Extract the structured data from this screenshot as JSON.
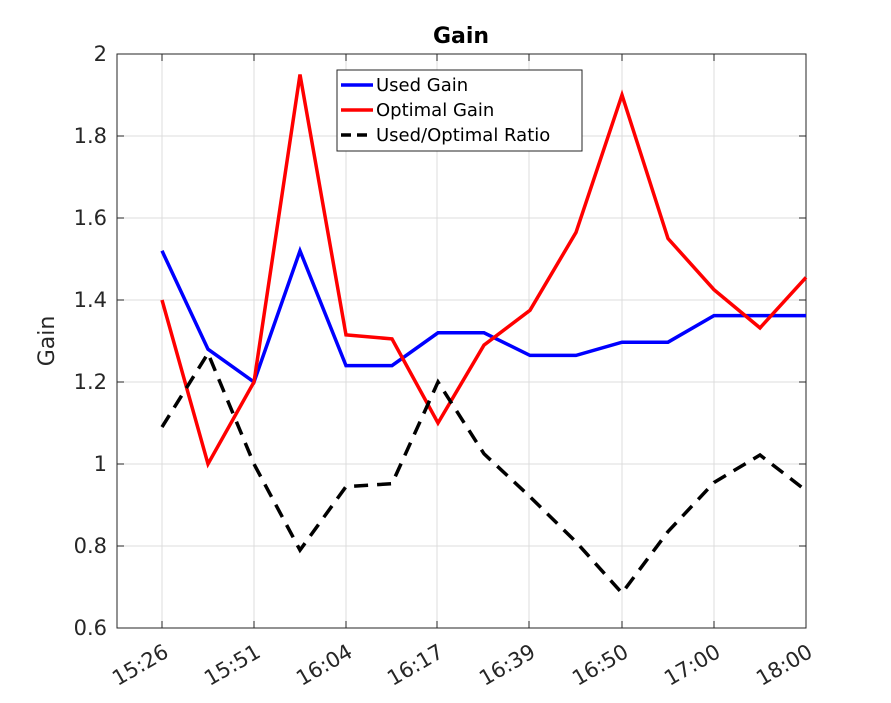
{
  "chart_data": {
    "type": "line",
    "title": "Gain",
    "xlabel": "",
    "ylabel": "Gain",
    "ylim": [
      0.6,
      2
    ],
    "yticks": [
      "0.6",
      "0.8",
      "1",
      "1.2",
      "1.4",
      "1.6",
      "1.8",
      "2"
    ],
    "xticks": [
      "15:26",
      "15:51",
      "16:04",
      "16:17",
      "16:39",
      "16:50",
      "17:00",
      "18:00"
    ],
    "grid": true,
    "legend_position": "top-center",
    "series": [
      {
        "name": "Used Gain",
        "color": "#0000ff",
        "style": "solid",
        "values": [
          1.52,
          1.28,
          1.2,
          1.52,
          1.24,
          1.24,
          1.32,
          1.32,
          1.265,
          1.265,
          1.297,
          1.297,
          1.362,
          1.362,
          1.362
        ]
      },
      {
        "name": "Optimal Gain",
        "color": "#ff0000",
        "style": "solid",
        "values": [
          1.4,
          1.0,
          1.2,
          1.95,
          1.315,
          1.305,
          1.1,
          1.29,
          1.375,
          1.565,
          1.9,
          1.55,
          1.425,
          1.332,
          1.455
        ]
      },
      {
        "name": "Used/Optimal Ratio",
        "color": "#000000",
        "style": "dashed",
        "values": [
          1.09,
          1.27,
          1.0,
          0.79,
          0.945,
          0.952,
          1.2,
          1.025,
          0.92,
          0.81,
          0.685,
          0.835,
          0.955,
          1.022,
          0.935
        ]
      }
    ]
  }
}
